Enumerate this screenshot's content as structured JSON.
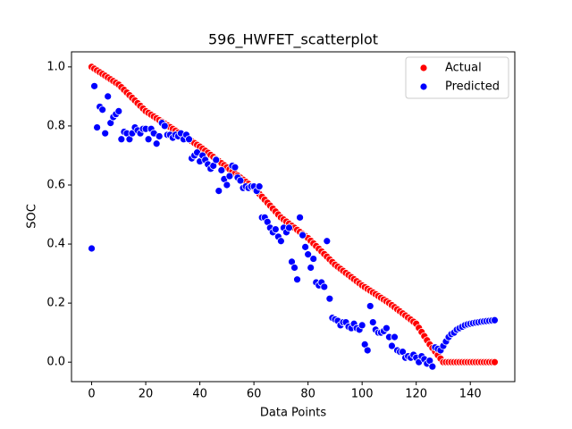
{
  "chart_data": {
    "type": "scatter",
    "title": "596_HWFET_scatterplot",
    "xlabel": "Data Points",
    "ylabel": "SOC",
    "legend": "upper right",
    "x": [
      0,
      1,
      2,
      3,
      4,
      5,
      6,
      7,
      8,
      9,
      10,
      11,
      12,
      13,
      14,
      15,
      16,
      17,
      18,
      19,
      20,
      21,
      22,
      23,
      24,
      25,
      26,
      27,
      28,
      29,
      30,
      31,
      32,
      33,
      34,
      35,
      36,
      37,
      38,
      39,
      40,
      41,
      42,
      43,
      44,
      45,
      46,
      47,
      48,
      49,
      50,
      51,
      52,
      53,
      54,
      55,
      56,
      57,
      58,
      59,
      60,
      61,
      62,
      63,
      64,
      65,
      66,
      67,
      68,
      69,
      70,
      71,
      72,
      73,
      74,
      75,
      76,
      77,
      78,
      79,
      80,
      81,
      82,
      83,
      84,
      85,
      86,
      87,
      88,
      89,
      90,
      91,
      92,
      93,
      94,
      95,
      96,
      97,
      98,
      99,
      100,
      101,
      102,
      103,
      104,
      105,
      106,
      107,
      108,
      109,
      110,
      111,
      112,
      113,
      114,
      115,
      116,
      117,
      118,
      119,
      120,
      121,
      122,
      123,
      124,
      125,
      126,
      127,
      128,
      129,
      130,
      131,
      132,
      133,
      134,
      135,
      136,
      137,
      138,
      139,
      140,
      141,
      142,
      143,
      144,
      145,
      146,
      147,
      148,
      149
    ],
    "series": [
      {
        "name": "Actual",
        "color": "#ff0000",
        "values": [
          1.0,
          0.994,
          0.988,
          0.982,
          0.976,
          0.97,
          0.964,
          0.958,
          0.952,
          0.946,
          0.94,
          0.931,
          0.922,
          0.913,
          0.904,
          0.895,
          0.886,
          0.877,
          0.868,
          0.859,
          0.85,
          0.844,
          0.838,
          0.832,
          0.826,
          0.82,
          0.814,
          0.808,
          0.802,
          0.796,
          0.79,
          0.784,
          0.778,
          0.772,
          0.766,
          0.76,
          0.754,
          0.748,
          0.742,
          0.736,
          0.73,
          0.723,
          0.716,
          0.709,
          0.702,
          0.695,
          0.688,
          0.681,
          0.674,
          0.667,
          0.66,
          0.653,
          0.646,
          0.639,
          0.632,
          0.625,
          0.618,
          0.611,
          0.604,
          0.597,
          0.59,
          0.58,
          0.57,
          0.56,
          0.55,
          0.54,
          0.53,
          0.52,
          0.51,
          0.5,
          0.49,
          0.483,
          0.476,
          0.469,
          0.462,
          0.455,
          0.448,
          0.441,
          0.434,
          0.427,
          0.42,
          0.411,
          0.402,
          0.393,
          0.384,
          0.375,
          0.366,
          0.357,
          0.348,
          0.339,
          0.33,
          0.323,
          0.316,
          0.309,
          0.302,
          0.295,
          0.288,
          0.281,
          0.274,
          0.267,
          0.26,
          0.254,
          0.248,
          0.242,
          0.236,
          0.23,
          0.224,
          0.218,
          0.212,
          0.206,
          0.2,
          0.193,
          0.186,
          0.179,
          0.172,
          0.165,
          0.158,
          0.151,
          0.144,
          0.137,
          0.13,
          0.116,
          0.102,
          0.088,
          0.074,
          0.06,
          0.048,
          0.036,
          0.024,
          0.012,
          0,
          0,
          0,
          0,
          0,
          0,
          0,
          0,
          0,
          0,
          0,
          0,
          0,
          0,
          0,
          0,
          0,
          0,
          0,
          0
        ]
      },
      {
        "name": "Predicted",
        "color": "#0000ff",
        "values": [
          0.385,
          0.935,
          0.795,
          0.865,
          0.855,
          0.775,
          0.9,
          0.81,
          0.83,
          0.84,
          0.85,
          0.755,
          0.78,
          0.775,
          0.755,
          0.775,
          0.795,
          0.785,
          0.775,
          0.79,
          0.79,
          0.755,
          0.79,
          0.775,
          0.74,
          0.765,
          0.81,
          0.8,
          0.77,
          0.77,
          0.76,
          0.77,
          0.765,
          0.775,
          0.755,
          0.77,
          0.755,
          0.69,
          0.7,
          0.71,
          0.68,
          0.7,
          0.685,
          0.67,
          0.655,
          0.665,
          0.685,
          0.58,
          0.65,
          0.62,
          0.6,
          0.63,
          0.665,
          0.66,
          0.625,
          0.615,
          0.59,
          0.595,
          0.59,
          0.595,
          0.595,
          0.58,
          0.595,
          0.49,
          0.49,
          0.475,
          0.455,
          0.44,
          0.45,
          0.425,
          0.41,
          0.455,
          0.44,
          0.455,
          0.34,
          0.32,
          0.28,
          0.49,
          0.43,
          0.39,
          0.365,
          0.32,
          0.35,
          0.27,
          0.26,
          0.27,
          0.255,
          0.41,
          0.215,
          0.15,
          0.145,
          0.14,
          0.125,
          0.135,
          0.135,
          0.12,
          0.115,
          0.13,
          0.115,
          0.11,
          0.125,
          0.06,
          0.04,
          0.19,
          0.135,
          0.11,
          0.1,
          0.1,
          0.105,
          0.115,
          0.085,
          0.055,
          0.085,
          0.04,
          0.035,
          0.035,
          0.015,
          0.02,
          0.015,
          0.025,
          0.015,
          0.0,
          0.02,
          0.01,
          -0.005,
          0.005,
          -0.015,
          0.05,
          0.045,
          0.04,
          0.055,
          0.07,
          0.085,
          0.095,
          0.1,
          0.11,
          0.115,
          0.12,
          0.125,
          0.128,
          0.13,
          0.132,
          0.134,
          0.135,
          0.137,
          0.138,
          0.139,
          0.14,
          0.141,
          0.142
        ]
      }
    ],
    "xlim": [
      -7.45,
      156.45
    ],
    "xticks": [
      0,
      20,
      40,
      60,
      80,
      100,
      120,
      140
    ],
    "ylim": [
      -0.066,
      1.051
    ],
    "yticks": [
      {
        "value": 0,
        "label": "0.0"
      },
      0.2,
      0.4,
      0.6,
      0.8,
      {
        "value": 1,
        "label": "1.0"
      }
    ]
  }
}
